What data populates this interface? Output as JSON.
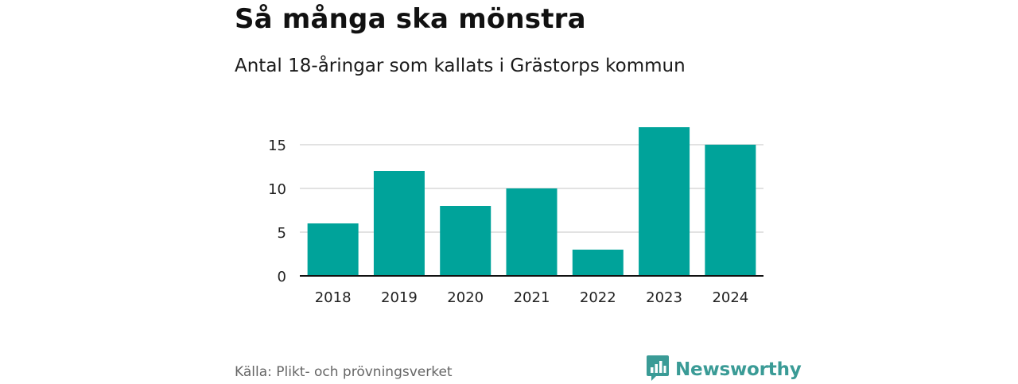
{
  "header": {
    "title": "Så många ska mönstra",
    "subtitle": "Antal 18-åringar som kallats i Grästorps kommun"
  },
  "footer": {
    "source": "Källa: Plikt- och prövningsverket",
    "brand": "Newsworthy",
    "brand_icon": "bar-chart-speech-icon"
  },
  "colors": {
    "bar": "#00a39a",
    "grid": "#d9d9d9",
    "axis": "#111111",
    "brand": "#3a9b96"
  },
  "chart_data": {
    "type": "bar",
    "title": "Så många ska mönstra",
    "subtitle": "Antal 18-åringar som kallats i Grästorps kommun",
    "xlabel": "",
    "ylabel": "",
    "categories": [
      "2018",
      "2019",
      "2020",
      "2021",
      "2022",
      "2023",
      "2024"
    ],
    "values": [
      6,
      12,
      8,
      10,
      3,
      17,
      15
    ],
    "ylim": [
      0,
      17
    ],
    "yticks": [
      0,
      5,
      10,
      15
    ],
    "grid": true,
    "legend": "none"
  }
}
